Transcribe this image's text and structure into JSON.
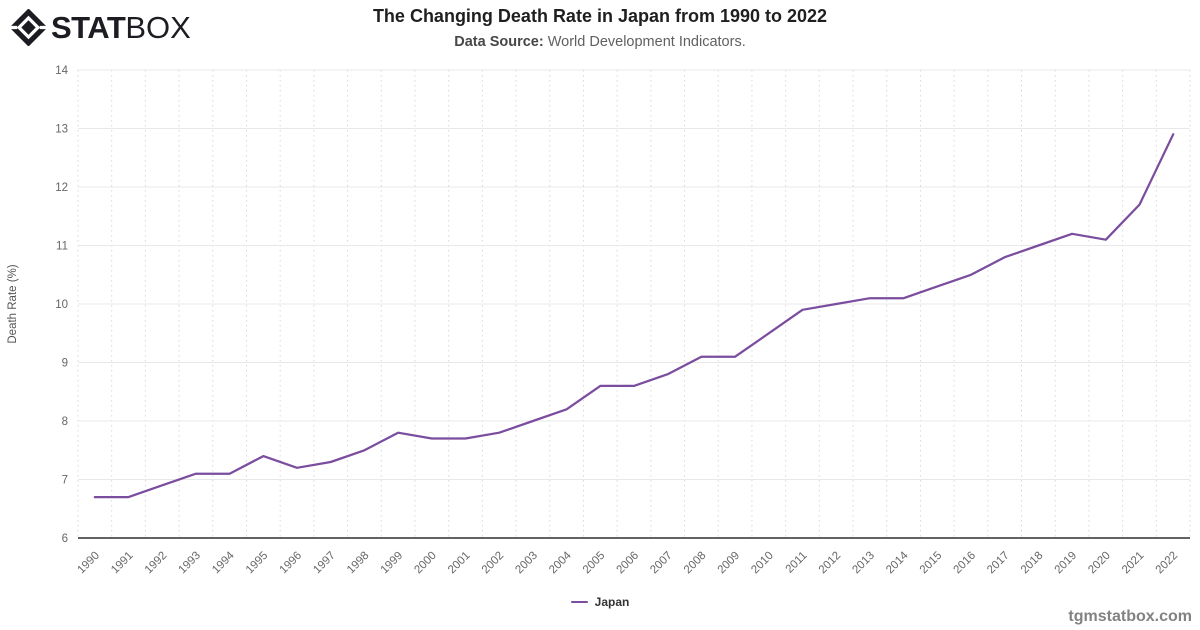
{
  "page": {
    "watermark": "tgmstatbox.com"
  },
  "logo": {
    "brand_bold": "STAT",
    "brand_light": "BOX",
    "icon": "diamond-in-diamond-icon",
    "color": "#1c1c22"
  },
  "header": {
    "title": "The Changing Death Rate in Japan from 1990 to 2022",
    "subtitle_label": "Data Source:",
    "subtitle_text": " World Development Indicators."
  },
  "chart_data": {
    "type": "line",
    "title": "The Changing Death Rate in Japan from 1990 to 2022",
    "xlabel": "",
    "ylabel": "Death Rate (%)",
    "ylim": [
      6,
      14
    ],
    "yticks": [
      6,
      7,
      8,
      9,
      10,
      11,
      12,
      13,
      14
    ],
    "grid": true,
    "gridline_color_horizontal": "#e8e8e8",
    "gridline_color_vertical": "#d8d8d8",
    "axis_color": "#2e2e2e",
    "legend_position": "bottom-center",
    "categories": [
      1990,
      1991,
      1992,
      1993,
      1994,
      1995,
      1996,
      1997,
      1998,
      1999,
      2000,
      2001,
      2002,
      2003,
      2004,
      2005,
      2006,
      2007,
      2008,
      2009,
      2010,
      2011,
      2012,
      2013,
      2014,
      2015,
      2016,
      2017,
      2018,
      2019,
      2020,
      2021,
      2022
    ],
    "series": [
      {
        "name": "Japan",
        "color": "#7B4D9E",
        "values": [
          6.7,
          6.7,
          6.9,
          7.1,
          7.1,
          7.4,
          7.2,
          7.3,
          7.5,
          7.8,
          7.7,
          7.7,
          7.8,
          8.0,
          8.2,
          8.6,
          8.6,
          8.8,
          9.1,
          9.1,
          9.5,
          9.9,
          10.0,
          10.1,
          10.1,
          10.3,
          10.5,
          10.8,
          11.0,
          11.2,
          11.1,
          11.7,
          12.9
        ]
      }
    ]
  }
}
